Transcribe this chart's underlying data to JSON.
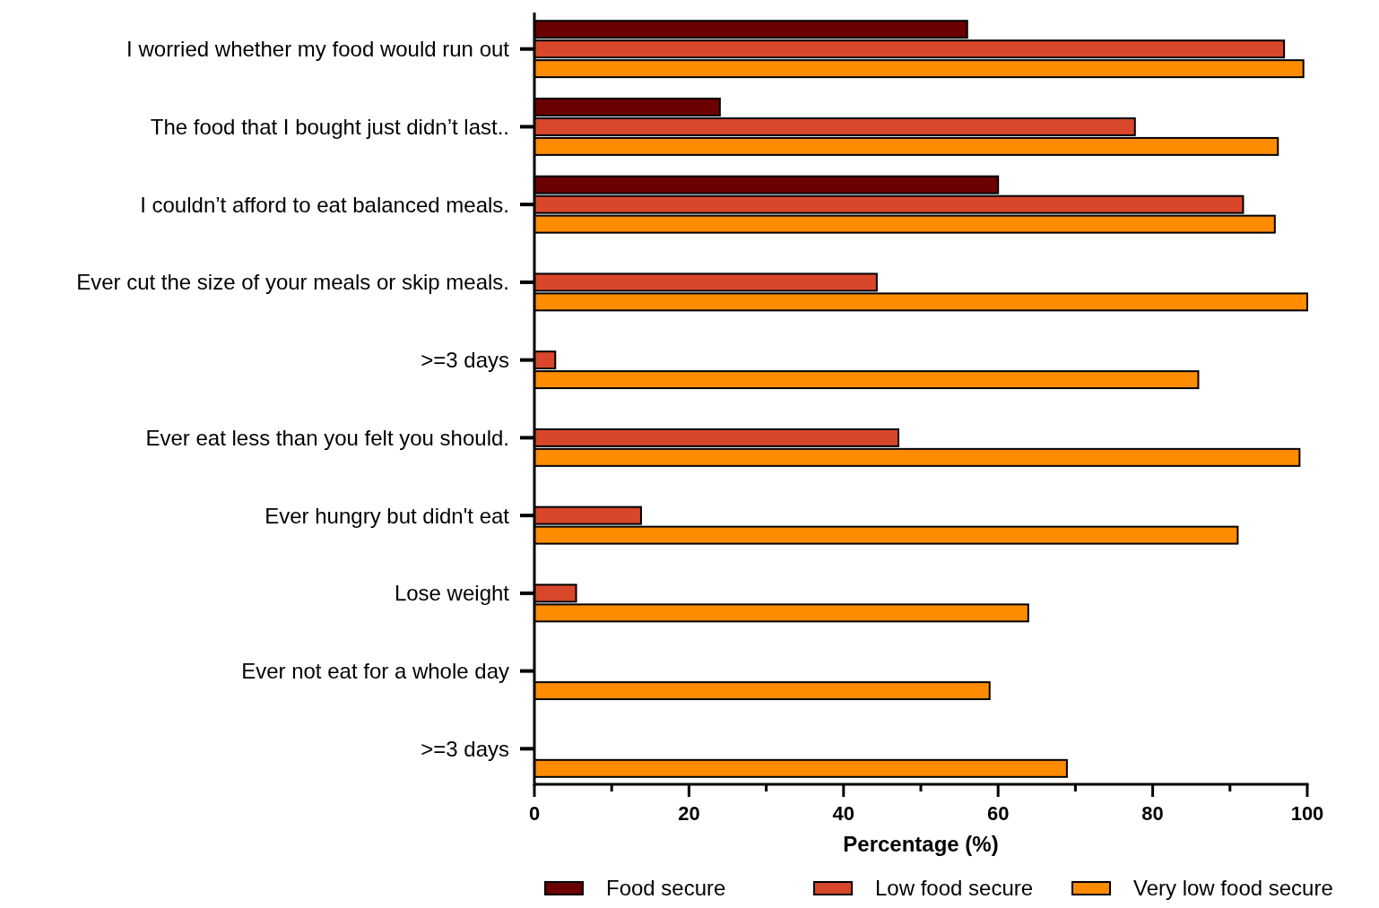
{
  "chart_data": {
    "type": "bar",
    "orientation": "horizontal",
    "xlabel": "Percentage (%)",
    "categories": [
      "I worried whether my food would run out",
      "The food that I bought just didn’t last..",
      "I couldn’t afford to eat balanced meals.",
      "Ever cut the size of your meals or skip meals.",
      ">=3 days",
      "Ever eat less than you felt you should.",
      "Ever hungry but didn't eat",
      "Lose weight",
      "Ever not eat for a whole day",
      ">=3 days"
    ],
    "series": [
      {
        "name": "Food secure",
        "color": "#6b0000",
        "values": [
          56,
          24,
          60,
          null,
          null,
          null,
          null,
          null,
          null,
          null
        ]
      },
      {
        "name": "Low food secure",
        "color": "#d9472b",
        "values": [
          97,
          77.7,
          91.7,
          44.3,
          2.7,
          47.1,
          13.8,
          5.4,
          null,
          null
        ]
      },
      {
        "name": "Very low food secure",
        "color": "#ff8c00",
        "values": [
          99.5,
          96.2,
          95.8,
          100,
          85.9,
          99,
          91,
          63.9,
          58.9,
          68.9
        ]
      }
    ],
    "xlim": [
      0,
      100
    ],
    "xticks": [
      0,
      {
        "value": 10,
        "label": null
      },
      20,
      {
        "value": 30,
        "label": null
      },
      40,
      {
        "value": 50,
        "label": null
      },
      60,
      {
        "value": 70,
        "label": null
      },
      80,
      {
        "value": 90,
        "label": null
      },
      100
    ],
    "grid": false,
    "legend": "bottom"
  }
}
